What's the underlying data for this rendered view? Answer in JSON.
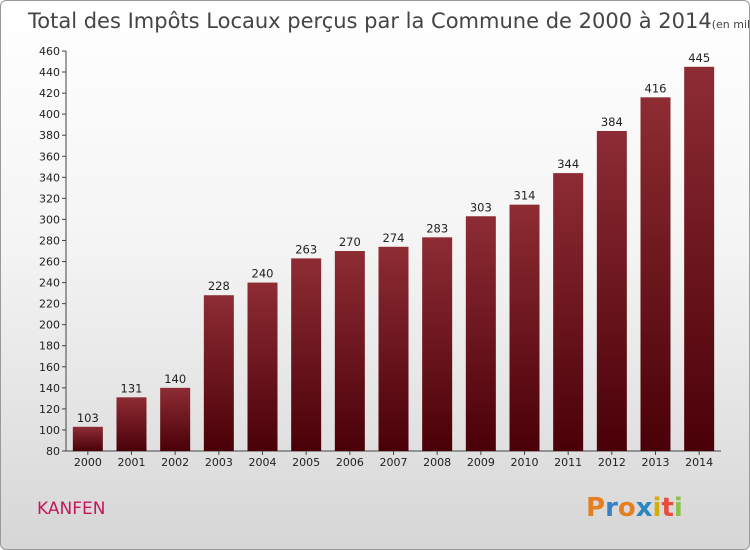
{
  "chart_data": {
    "type": "bar",
    "title": "Total des Impôts Locaux perçus par la Commune de 2000 à 2014",
    "unit": "(en milliers d'€)",
    "categories": [
      "2000",
      "2001",
      "2002",
      "2003",
      "2004",
      "2005",
      "2006",
      "2007",
      "2008",
      "2009",
      "2010",
      "2011",
      "2012",
      "2013",
      "2014"
    ],
    "values": [
      103,
      131,
      140,
      228,
      240,
      263,
      270,
      274,
      283,
      303,
      314,
      344,
      384,
      416,
      445
    ],
    "ylim": [
      80,
      460
    ],
    "yticks": [
      80,
      100,
      120,
      140,
      160,
      180,
      200,
      220,
      240,
      260,
      280,
      300,
      320,
      340,
      360,
      380,
      400,
      420,
      440,
      460
    ],
    "grid": false,
    "bar_color": "#7a1a22"
  },
  "commune": "KANFEN",
  "brand": {
    "letters": [
      "P",
      "r",
      "o",
      "x",
      "i",
      "t",
      "i"
    ],
    "colors": [
      "#e67e22",
      "#3a7fc1",
      "#e67e22",
      "#2e86c1",
      "#d4ac0d",
      "#e74c3c",
      "#8bc34a"
    ]
  }
}
